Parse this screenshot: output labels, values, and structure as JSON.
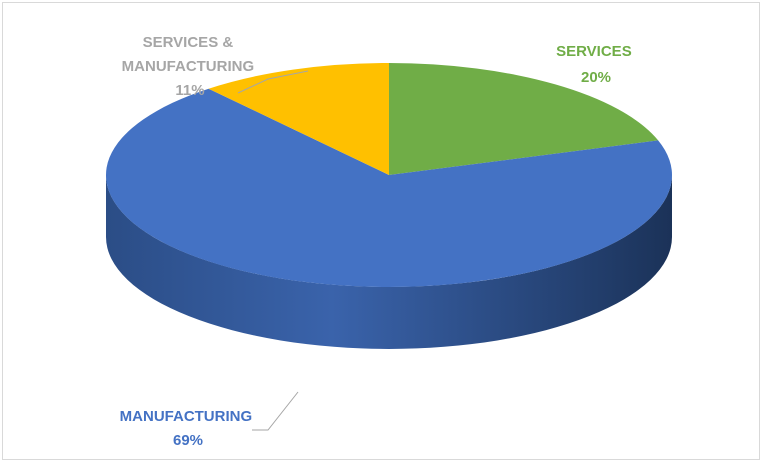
{
  "chart_data": {
    "type": "pie",
    "style": "3d",
    "slices": [
      {
        "label": "SERVICES",
        "value": 20,
        "percent_label": "20%",
        "color": "#70ad47",
        "label_color": "#70ad47"
      },
      {
        "label": "MANUFACTURING",
        "value": 69,
        "percent_label": "69%",
        "color": "#4472c4",
        "label_color": "#4472c4"
      },
      {
        "label": "SERVICES & MANUFACTURING",
        "label_lines": [
          "SERVICES &",
          "MANUFACTURING"
        ],
        "value": 11,
        "percent_label": "11%",
        "color": "#ffc000",
        "label_color": "#a6a6a6"
      }
    ],
    "legend": "none",
    "leader_line_color": "#a6a6a6"
  }
}
